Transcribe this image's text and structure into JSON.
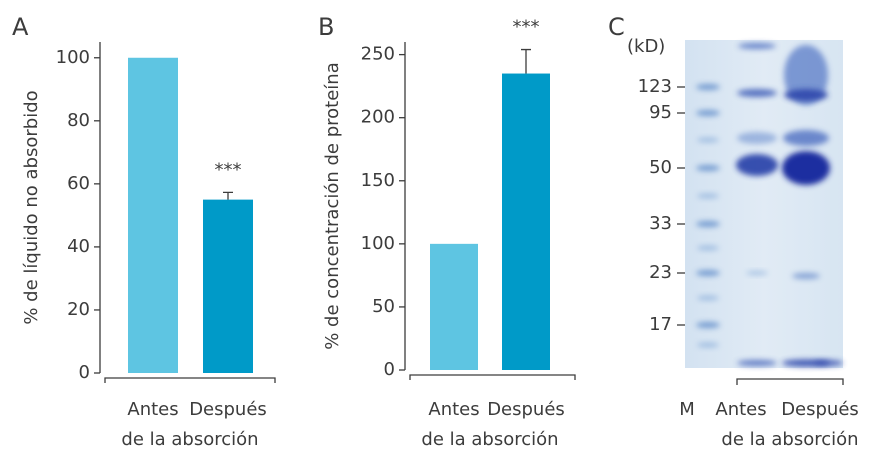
{
  "chart_data": [
    {
      "type": "bar",
      "panel": "A",
      "ylabel": "% de líquido no absorbido",
      "xlabel": "de la absorción",
      "categories": [
        "Antes",
        "Después"
      ],
      "values": [
        100,
        55
      ],
      "errors": [
        null,
        2.3
      ],
      "colors": [
        "#5ec5e2",
        "#009ac8"
      ],
      "annotation": "***",
      "ylim": [
        0,
        105
      ],
      "yticks": [
        0,
        20,
        40,
        60,
        80,
        100
      ]
    },
    {
      "type": "bar",
      "panel": "B",
      "ylabel": "% de concentración de proteína",
      "xlabel": "de la absorción",
      "categories": [
        "Antes",
        "Después"
      ],
      "values": [
        100,
        235
      ],
      "errors": [
        null,
        19
      ],
      "colors": [
        "#5ec5e2",
        "#009ac8"
      ],
      "annotation": "***",
      "ylim": [
        0,
        260
      ],
      "yticks": [
        0,
        50,
        100,
        150,
        200,
        250
      ]
    },
    {
      "type": "gel",
      "panel": "C",
      "unit": "(kD)",
      "xlabel": "de la absorción",
      "categories": [
        "M",
        "Antes",
        "Después"
      ],
      "yticks": [
        123,
        95,
        50,
        33,
        23,
        17
      ]
    }
  ]
}
